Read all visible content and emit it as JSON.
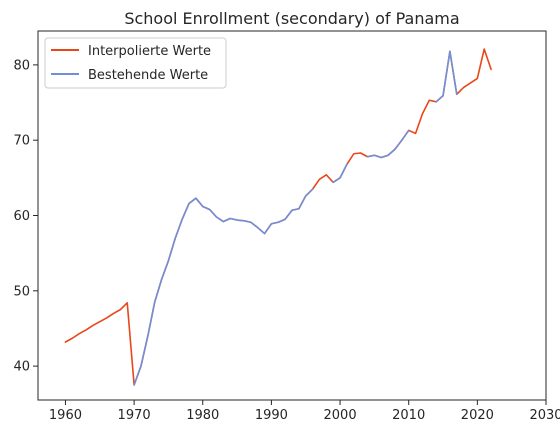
{
  "chart_data": {
    "type": "line",
    "title": "School Enrollment (secondary) of Panama",
    "xlabel": "",
    "ylabel": "",
    "xlim": [
      1956,
      2030
    ],
    "ylim": [
      35.5,
      84.5
    ],
    "xticks": [
      1960,
      1970,
      1980,
      1990,
      2000,
      2010,
      2020,
      2030
    ],
    "yticks": [
      40,
      50,
      60,
      70,
      80
    ],
    "grid": false,
    "legend_position": "top-left",
    "series": [
      {
        "name": "Interpolierte Werte",
        "color": "#e8471a",
        "x": [
          1960,
          1961,
          1962,
          1963,
          1964,
          1965,
          1966,
          1967,
          1968,
          1969,
          1970,
          1971,
          1972,
          1973,
          1974,
          1975,
          1976,
          1977,
          1978,
          1979,
          1980,
          1981,
          1982,
          1983,
          1984,
          1985,
          1986,
          1987,
          1988,
          1989,
          1990,
          1991,
          1992,
          1993,
          1994,
          1995,
          1996,
          1997,
          1998,
          1999,
          2000,
          2001,
          2002,
          2003,
          2004,
          2005,
          2006,
          2007,
          2008,
          2009,
          2010,
          2011,
          2012,
          2013,
          2014,
          2015,
          2016,
          2017,
          2018,
          2019,
          2020,
          2021,
          2022
        ],
        "values": [
          43.2,
          43.7,
          44.3,
          44.8,
          45.4,
          45.9,
          46.4,
          47.0,
          47.5,
          48.4,
          37.5,
          40.0,
          44.0,
          48.5,
          51.5,
          54.0,
          57.0,
          59.5,
          61.6,
          62.3,
          61.2,
          60.8,
          59.8,
          59.2,
          59.6,
          59.4,
          59.3,
          59.1,
          58.4,
          57.6,
          58.9,
          59.1,
          59.5,
          60.7,
          60.9,
          62.6,
          63.5,
          64.8,
          65.4,
          64.4,
          65.0,
          66.8,
          68.2,
          68.3,
          67.8,
          68.0,
          67.7,
          68.0,
          68.8,
          70.0,
          71.3,
          70.9,
          73.5,
          75.3,
          75.1,
          75.9,
          81.8,
          76.1,
          77.0,
          77.6,
          78.2,
          82.1,
          79.4
        ]
      },
      {
        "name": "Bestehende Werte",
        "color": "#6f8fdb",
        "x": [
          1970,
          1971,
          1972,
          1973,
          1974,
          1975,
          1976,
          1977,
          1978,
          1979,
          1980,
          1981,
          1982,
          1983,
          1984,
          1985,
          1986,
          1987,
          1988,
          1989,
          1990,
          1991,
          1992,
          1993,
          1994,
          1995,
          1996,
          1997,
          null,
          1999,
          2000,
          2001,
          null,
          2003,
          2004,
          2005,
          2006,
          2007,
          2008,
          2009,
          2010,
          null,
          2013,
          2014,
          2015,
          2016,
          2017
        ],
        "values": [
          37.5,
          40.0,
          44.0,
          48.5,
          51.5,
          54.0,
          57.0,
          59.5,
          61.6,
          62.3,
          61.2,
          60.8,
          59.8,
          59.2,
          59.6,
          59.4,
          59.3,
          59.1,
          58.4,
          57.6,
          58.9,
          59.1,
          59.5,
          60.7,
          60.9,
          62.6,
          63.5,
          null,
          null,
          64.4,
          65.0,
          66.8,
          null,
          null,
          67.8,
          68.0,
          67.7,
          68.0,
          68.8,
          70.0,
          71.3,
          null,
          null,
          75.1,
          75.9,
          81.8,
          76.1
        ]
      }
    ]
  }
}
